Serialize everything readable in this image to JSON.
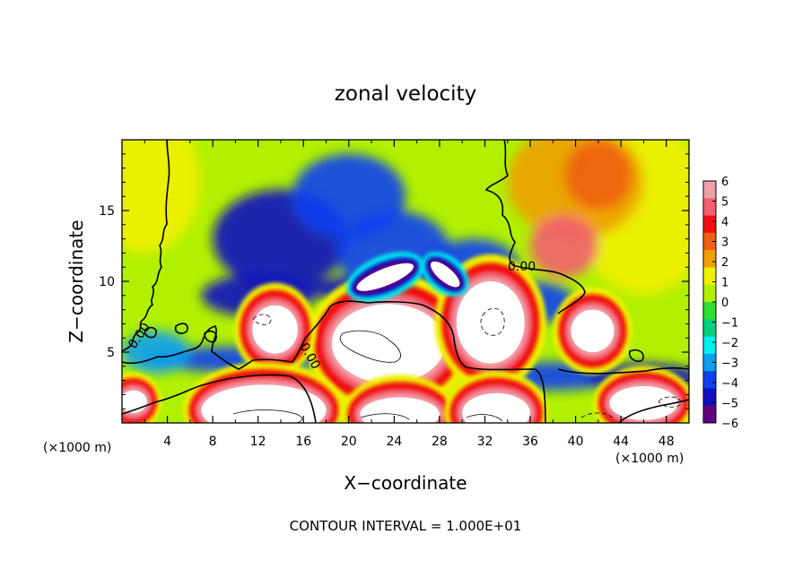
{
  "chart_data": {
    "type": "heatmap",
    "title": "zonal velocity",
    "xlabel": "X−coordinate",
    "ylabel": "Z−coordinate",
    "x_unit": "(×1000 m)",
    "z_unit": "(×1000 m)",
    "xlim": [
      0,
      50
    ],
    "ylim": [
      0,
      20
    ],
    "x_ticks": [
      4,
      8,
      12,
      16,
      20,
      24,
      28,
      32,
      36,
      40,
      44,
      48
    ],
    "y_ticks": [
      5,
      10,
      15
    ],
    "colorbar": {
      "min": -6,
      "max": 6,
      "ticks": [
        6,
        5,
        4,
        3,
        2,
        1,
        0,
        -1,
        -2,
        -3,
        -4,
        -5,
        -6
      ],
      "tick_labels": [
        "6",
        "5",
        "4",
        "3",
        "2",
        "1",
        "0",
        "−1",
        "−2",
        "−3",
        "−4",
        "−5",
        "−6"
      ],
      "colors": [
        "#f2a0a8",
        "#f26070",
        "#f01010",
        "#f06010",
        "#f0a000",
        "#f0f000",
        "#b0f000",
        "#30e030",
        "#00d080",
        "#00f0f0",
        "#10a0f0",
        "#1040f0",
        "#1010c0",
        "#600080"
      ]
    },
    "contour_label": "0.00",
    "annotations": [
      "CONTOUR INTERVAL = 1.000E+01"
    ],
    "field_features": [
      {
        "x": 2,
        "z": 17,
        "value": 1.5,
        "sx": 5,
        "sz": 5
      },
      {
        "x": 46,
        "z": 15,
        "value": 1.0,
        "sx": 6,
        "sz": 6
      },
      {
        "x": 40,
        "z": 17,
        "value": 2.5,
        "sx": 6,
        "sz": 4
      },
      {
        "x": 39,
        "z": 12.5,
        "value": 5.0,
        "sx": 3,
        "sz": 2.2
      },
      {
        "x": 42,
        "z": 17.5,
        "value": 3.0,
        "sx": 3,
        "sz": 2.5
      },
      {
        "x": 14,
        "z": 13,
        "value": -5.0,
        "sx": 6,
        "sz": 3.5
      },
      {
        "x": 20,
        "z": 16,
        "value": -3.5,
        "sx": 5,
        "sz": 3
      },
      {
        "x": 24,
        "z": 12,
        "value": -3.5,
        "sx": 5,
        "sz": 3
      },
      {
        "x": 31,
        "z": 11,
        "value": -3.5,
        "sx": 4,
        "sz": 2
      },
      {
        "x": 12,
        "z": 9,
        "value": -5.0,
        "sx": 5,
        "sz": 1.5
      },
      {
        "x": 24,
        "z": 9.5,
        "value": -5.0,
        "sx": 8,
        "sz": 1
      },
      {
        "x": 36,
        "z": 8.5,
        "value": -4.0,
        "sx": 4,
        "sz": 1.5
      },
      {
        "x": 10,
        "z": 4.5,
        "value": -4.0,
        "sx": 8,
        "sz": 0.9
      },
      {
        "x": 3,
        "z": 5,
        "value": -3.0,
        "sx": 3,
        "sz": 1.5
      },
      {
        "x": 38,
        "z": 3.3,
        "value": -4.0,
        "sx": 6,
        "sz": 1
      },
      {
        "x": 46,
        "z": 3.2,
        "value": -4.5,
        "sx": 5,
        "sz": 1
      }
    ],
    "blobs": [
      {
        "x": 23.5,
        "z": 5.6,
        "value": 10,
        "rx": 5,
        "rz": 2.8,
        "ring": 1.4
      },
      {
        "x": 32.5,
        "z": 7.1,
        "value": 10,
        "rx": 3.0,
        "rz": 2.9,
        "ring": 1.2
      },
      {
        "x": 13.5,
        "z": 6.6,
        "value": 10,
        "rx": 2.0,
        "rz": 1.7,
        "ring": 1.0
      },
      {
        "x": 41.5,
        "z": 6.5,
        "value": 9,
        "rx": 1.9,
        "rz": 1.5,
        "ring": 1.0
      },
      {
        "x": 12.5,
        "z": 0.9,
        "value": 10,
        "rx": 5.5,
        "rz": 1.8,
        "ring": 1.0
      },
      {
        "x": 24.5,
        "z": 0.6,
        "value": 10,
        "rx": 3.5,
        "rz": 1.2,
        "ring": 1.0
      },
      {
        "x": 33,
        "z": 0.7,
        "value": 9,
        "rx": 3.0,
        "rz": 1.4,
        "ring": 1.0
      },
      {
        "x": 46,
        "z": 1.4,
        "value": 8,
        "rx": 3.0,
        "rz": 1.2,
        "ring": 0.9
      },
      {
        "x": 1,
        "z": 1.5,
        "value": 9,
        "rx": 1.2,
        "rz": 0.8,
        "ring": 0.8
      },
      {
        "x": 23.2,
        "z": 10.3,
        "value": -10,
        "rx": 2.7,
        "rz": 0.6,
        "rot": -22,
        "ring": 0.7
      },
      {
        "x": 28.5,
        "z": 10.5,
        "value": -10,
        "rx": 1.6,
        "rz": 0.5,
        "rot": 40,
        "ring": 0.6
      }
    ]
  }
}
